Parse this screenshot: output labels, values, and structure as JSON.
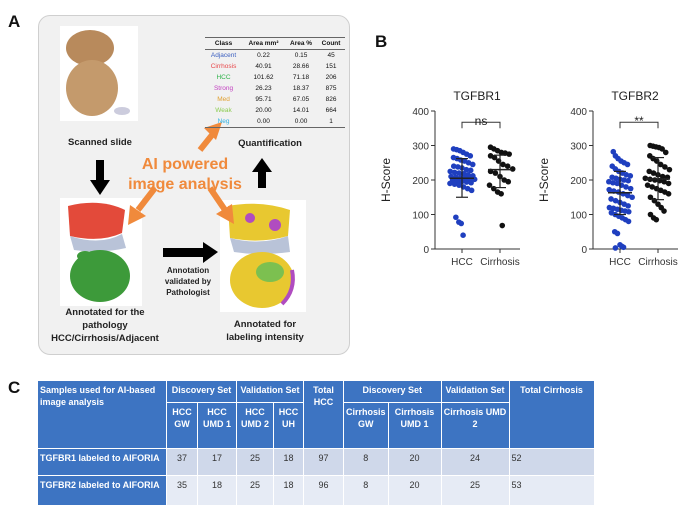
{
  "panel_labels": {
    "a": "A",
    "b": "B",
    "c": "C"
  },
  "panel_a": {
    "scanned_slide": "Scanned slide",
    "quantification": "Quantification",
    "ai_line1": "AI powered",
    "ai_line2": "image analysis",
    "annot_path": [
      "Annotated for the",
      "pathology",
      "HCC/Cirrhosis/Adjacent"
    ],
    "annot_validated": [
      "Annotation",
      "validated by",
      "Pathologist"
    ],
    "annot_intensity": [
      "Annotated for",
      "labeling intensity"
    ],
    "table": {
      "headers": [
        "Class",
        "Area mm²",
        "Area %",
        "Count"
      ],
      "rows": [
        {
          "cls": "Adjacent",
          "area": "0.22",
          "pct": "0.15",
          "count": "45",
          "color": "#3b5fc0"
        },
        {
          "cls": "Cirrhosis",
          "area": "40.91",
          "pct": "28.66",
          "count": "151",
          "color": "#e8474a"
        },
        {
          "cls": "HCC",
          "area": "101.62",
          "pct": "71.18",
          "count": "206",
          "color": "#2fb24a"
        },
        {
          "cls": "Strong",
          "area": "26.23",
          "pct": "18.37",
          "count": "875",
          "color": "#c23fc0"
        },
        {
          "cls": "Med",
          "area": "95.71",
          "pct": "67.05",
          "count": "826",
          "color": "#e0a030"
        },
        {
          "cls": "Weak",
          "area": "20.00",
          "pct": "14.01",
          "count": "664",
          "color": "#8ccc50"
        },
        {
          "cls": "Neg",
          "area": "0.00",
          "pct": "0.00",
          "count": "1",
          "color": "#30b0e0"
        }
      ]
    }
  },
  "chart_data": [
    {
      "type": "scatter",
      "title": "TGFBR1",
      "ylabel": "H-Score",
      "ylim": [
        0,
        400
      ],
      "yticks": [
        "0",
        "100",
        "200",
        "300",
        "400"
      ],
      "categories": [
        "HCC",
        "Cirrhosis"
      ],
      "significance": "ns",
      "series": [
        {
          "name": "HCC",
          "color": "#1f3fbf",
          "mean": 205,
          "sd_low": 150,
          "sd_high": 262,
          "values": [
            290,
            288,
            285,
            280,
            275,
            270,
            265,
            262,
            258,
            255,
            250,
            245,
            240,
            238,
            235,
            230,
            228,
            225,
            222,
            220,
            218,
            215,
            212,
            210,
            208,
            206,
            205,
            204,
            202,
            200,
            198,
            196,
            194,
            192,
            190,
            188,
            185,
            180,
            175,
            170,
            92,
            78,
            74,
            40
          ]
        },
        {
          "name": "Cirrhosis",
          "color": "#111111",
          "mean": 230,
          "sd_low": 178,
          "sd_high": 272,
          "values": [
            295,
            290,
            285,
            280,
            278,
            275,
            270,
            265,
            255,
            245,
            240,
            232,
            225,
            220,
            210,
            200,
            195,
            185,
            175,
            165,
            160,
            68
          ]
        }
      ]
    },
    {
      "type": "scatter",
      "title": "TGFBR2",
      "ylabel": "H-Score",
      "ylim": [
        0,
        400
      ],
      "yticks": [
        "0",
        "100",
        "200",
        "300",
        "400"
      ],
      "categories": [
        "HCC",
        "Cirrhosis"
      ],
      "significance": "**",
      "series": [
        {
          "name": "HCC",
          "color": "#1f3fbf",
          "mean": 163,
          "sd_low": 100,
          "sd_high": 225,
          "values": [
            282,
            270,
            262,
            255,
            250,
            245,
            240,
            232,
            225,
            220,
            215,
            212,
            208,
            205,
            202,
            200,
            198,
            195,
            192,
            190,
            185,
            180,
            175,
            172,
            168,
            165,
            160,
            155,
            150,
            145,
            140,
            135,
            130,
            125,
            120,
            118,
            115,
            112,
            110,
            108,
            105,
            100,
            95,
            90,
            85,
            80,
            50,
            45,
            12,
            8,
            5,
            3
          ]
        },
        {
          "name": "Cirrhosis",
          "color": "#111111",
          "mean": 203,
          "sd_low": 143,
          "sd_high": 265,
          "values": [
            300,
            298,
            296,
            294,
            290,
            280,
            270,
            262,
            255,
            245,
            238,
            230,
            225,
            220,
            215,
            210,
            208,
            205,
            202,
            200,
            198,
            195,
            190,
            185,
            180,
            175,
            170,
            165,
            160,
            150,
            140,
            130,
            120,
            110,
            100,
            90,
            85
          ]
        }
      ]
    }
  ],
  "panel_c": {
    "header_first": "Samples used for AI-based image analysis",
    "discovery": "Discovery Set",
    "validation": "Validation Set",
    "total_hcc": "Total HCC",
    "total_cirrhosis": "Total Cirrhosis",
    "sub": [
      "HCC GW",
      "HCC UMD 1",
      "HCC UMD 2",
      "HCC UH",
      "Cirrhosis GW",
      "Cirrhosis UMD 1",
      "Cirrhosis UMD 2"
    ],
    "rows": [
      {
        "label": "TGFBR1 labeled to AIFORIA",
        "v": [
          "37",
          "17",
          "25",
          "18",
          "97",
          "8",
          "20",
          "24",
          "52"
        ]
      },
      {
        "label": "TGFBR2 labeled to AIFORIA",
        "v": [
          "35",
          "18",
          "25",
          "18",
          "96",
          "8",
          "20",
          "25",
          "53"
        ]
      }
    ]
  }
}
